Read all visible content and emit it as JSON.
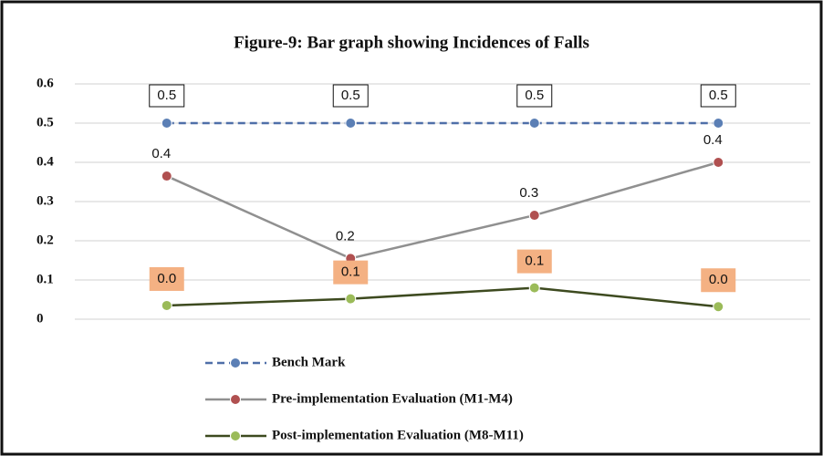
{
  "chart_data": {
    "type": "line",
    "title": "Figure-9: Bar graph showing Incidences of Falls",
    "categories": [
      null,
      null,
      null,
      null
    ],
    "ylim": [
      0,
      0.6
    ],
    "yticks": [
      0,
      0.1,
      0.2,
      0.3,
      0.4,
      0.5,
      0.6
    ],
    "grid": true,
    "series": [
      {
        "name": "Bench Mark",
        "color": "#4f6fa8",
        "marker_color": "#5b7fb5",
        "dashed": true,
        "values": [
          0.5,
          0.5,
          0.5,
          0.5
        ],
        "value_labels": [
          "0.5",
          "0.5",
          "0.5",
          "0.5"
        ]
      },
      {
        "name": "Pre-implementation Evaluation (M1-M4)",
        "color": "#909090",
        "marker_color": "#b05050",
        "values": [
          0.365,
          0.155,
          0.265,
          0.4
        ],
        "value_labels": [
          "0.4",
          "0.2",
          "0.3",
          "0.4"
        ]
      },
      {
        "name": "Post-implementation Evaluation (M8-M11)",
        "color": "#3d4a1f",
        "marker_color": "#9bbb59",
        "values": [
          0.035,
          0.052,
          0.08,
          0.032
        ],
        "value_labels": [
          "0.0",
          "0.1",
          "0.1",
          "0.0"
        ]
      }
    ]
  }
}
